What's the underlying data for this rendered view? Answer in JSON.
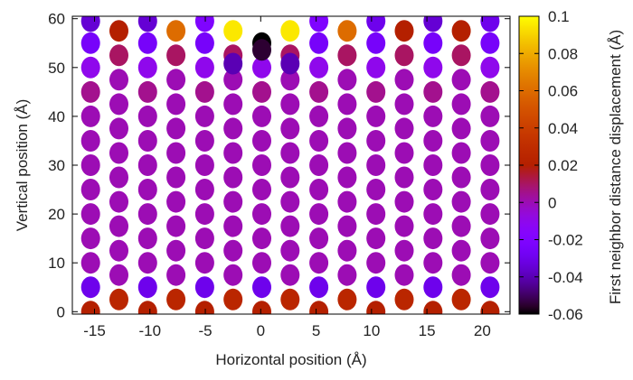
{
  "chart_data": {
    "type": "scatter",
    "xlabel": "Horizontal position (Å)",
    "ylabel": "Vertical position (Å)",
    "colorbar_label": "First neighbor distance displacement (Å)",
    "xlim": [
      -17,
      22.5
    ],
    "ylim": [
      -0.5,
      60.5
    ],
    "x_ticks": [
      -15,
      -10,
      -5,
      0,
      5,
      10,
      15,
      20
    ],
    "y_ticks": [
      0,
      10,
      20,
      30,
      40,
      50,
      60
    ],
    "colorbar": {
      "range": [
        -0.06,
        0.1
      ],
      "ticks": [
        0.1,
        0.08,
        0.06,
        0.04,
        0.02,
        0,
        -0.02,
        -0.04,
        -0.06
      ],
      "tick_labels": [
        "0.1",
        "0.08",
        "0.06",
        "0.04",
        "0.02",
        "0",
        "-0.02",
        "-0.04",
        "-0.06"
      ],
      "colormap": "gnuplot-pm3d"
    },
    "lattice": {
      "column_x_even": [
        -15.35,
        -10.2,
        -5.05,
        0.1,
        5.25,
        10.4,
        15.55,
        20.7
      ],
      "column_x_odd": [
        -12.8,
        -7.65,
        -2.5,
        2.65,
        7.8,
        12.95,
        18.1
      ],
      "y_even": [
        0,
        5,
        10,
        15,
        20,
        25,
        30,
        35,
        40,
        45,
        50,
        55
      ],
      "y_odd": [
        2.5,
        7.5,
        12.5,
        17.5,
        22.5,
        27.5,
        32.5,
        37.5,
        42.5,
        47.5,
        52.5,
        57.5
      ]
    },
    "row_values": {
      "0": 0.02,
      "2.5": 0.025,
      "5": -0.03,
      "7.5": 0.0,
      "10": 0.0,
      "12.5": 0.0,
      "15": 0.0,
      "17.5": 0.0,
      "20": 0.0,
      "22.5": 0.0,
      "25": 0.0,
      "27.5": 0.0,
      "30": 0.0,
      "32.5": 0.0,
      "35": 0.0,
      "37.5": 0.0,
      "40": 0.0,
      "42.5": 0.0,
      "45": 0.005,
      "47.5": 0.0,
      "50": -0.01,
      "52.5": 0.01,
      "55": -0.025,
      "57.5": 0.02
    },
    "special_points": [
      {
        "x": 0.1,
        "y": 55,
        "value": -0.06
      },
      {
        "x": 0.1,
        "y": 53.6,
        "value": -0.055
      },
      {
        "x": -2.5,
        "y": 50.8,
        "value": -0.04
      },
      {
        "x": 2.65,
        "y": 50.8,
        "value": -0.04
      },
      {
        "x": -2.5,
        "y": 57.5,
        "value": 0.095
      },
      {
        "x": 2.65,
        "y": 57.5,
        "value": 0.095
      },
      {
        "x": -7.65,
        "y": 57.5,
        "value": 0.06
      },
      {
        "x": 7.8,
        "y": 57.5,
        "value": 0.06
      },
      {
        "x": -15.35,
        "y": 59.5,
        "value": -0.035
      },
      {
        "x": -10.2,
        "y": 59.5,
        "value": -0.035
      },
      {
        "x": -5.05,
        "y": 59.5,
        "value": -0.02
      },
      {
        "x": 5.25,
        "y": 59.5,
        "value": -0.02
      },
      {
        "x": 10.4,
        "y": 59.5,
        "value": -0.03
      },
      {
        "x": 15.55,
        "y": 59.5,
        "value": -0.035
      },
      {
        "x": 20.7,
        "y": 59.5,
        "value": -0.03
      }
    ]
  }
}
